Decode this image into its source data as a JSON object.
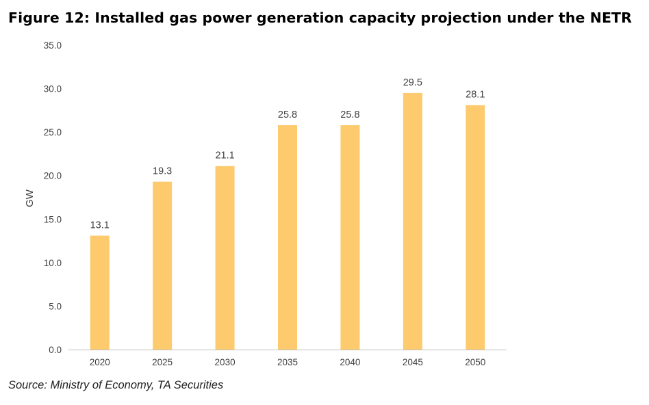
{
  "title": "Figure 12: Installed gas power generation capacity projection under the NETR",
  "source": "Source: Ministry of Economy, TA Securities",
  "colors": {
    "bar": "#FDCB6E",
    "axis": "#BFBFBF",
    "text": "#404040"
  },
  "chart_data": {
    "type": "bar",
    "title": "Figure 12: Installed gas power generation capacity projection under the NETR",
    "xlabel": "",
    "ylabel": "GW",
    "categories": [
      "2020",
      "2025",
      "2030",
      "2035",
      "2040",
      "2045",
      "2050"
    ],
    "values": [
      13.1,
      19.3,
      21.1,
      25.8,
      25.8,
      29.5,
      28.1
    ],
    "value_labels": [
      "13.1",
      "19.3",
      "21.1",
      "25.8",
      "25.8",
      "29.5",
      "28.1"
    ],
    "ylim": [
      0,
      35
    ],
    "yticks": [
      "0.0",
      "5.0",
      "10.0",
      "15.0",
      "20.0",
      "25.0",
      "30.0",
      "35.0"
    ],
    "grid": false,
    "legend": "none"
  }
}
